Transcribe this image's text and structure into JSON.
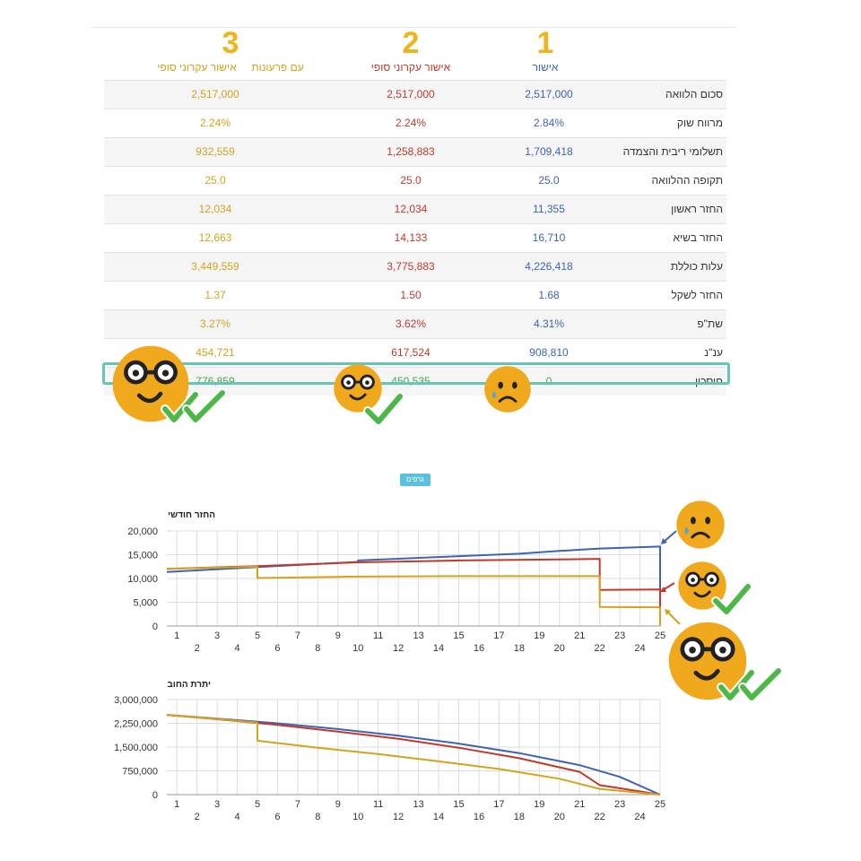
{
  "table": {
    "columns": [
      {
        "num": "1",
        "label": "אישור"
      },
      {
        "num": "2",
        "label": "אישור עקרוני סופי"
      },
      {
        "num": "3",
        "label": "אישור עקרוני סופי",
        "label2": "עם פרעונות"
      }
    ],
    "rows": [
      {
        "label": "סכום הלוואה",
        "v1": "2,517,000",
        "v2": "2,517,000",
        "v3": "2,517,000"
      },
      {
        "label": "מרווח שוק",
        "v1": "2.84%",
        "v2": "2.24%",
        "v3": "2.24%"
      },
      {
        "label": "תשלומי ריבית והצמדה",
        "v1": "1,709,418",
        "v2": "1,258,883",
        "v3": "932,559"
      },
      {
        "label": "תקופה ההלוואה",
        "v1": "25.0",
        "v2": "25.0",
        "v3": "25.0"
      },
      {
        "label": "החזר ראשון",
        "v1": "11,355",
        "v2": "12,034",
        "v3": "12,034"
      },
      {
        "label": "החזר בשיא",
        "v1": "16,710",
        "v2": "14,133",
        "v3": "12,663"
      },
      {
        "label": "עלות כוללת",
        "v1": "4,226,418",
        "v2": "3,775,883",
        "v3": "3,449,559"
      },
      {
        "label": "החזר לשקל",
        "v1": "1.68",
        "v2": "1.50",
        "v3": "1.37"
      },
      {
        "label": "שת\"פ",
        "v1": "4.31%",
        "v2": "3.62%",
        "v3": "3.27%"
      },
      {
        "label": "ענ\"נ",
        "v1": "908,810",
        "v2": "617,524",
        "v3": "454,721"
      },
      {
        "label": "חיסכון",
        "v1": "0",
        "v2": "450,535",
        "v3": "776,859"
      }
    ]
  },
  "badge": "גרפים",
  "colors": {
    "series1": "#3f63b4",
    "series2": "#c0392b",
    "series3": "#d5a21c",
    "savings": "#48a748",
    "highlight": "#66c6b5",
    "emoji": "#f0a81c"
  },
  "icons": [
    "sad-emoji-icon",
    "smile-emoji-icon",
    "glasses-emoji-icon",
    "checkmark-icon",
    "double-checkmark-icon",
    "arrow-icon"
  ],
  "chart_data": [
    {
      "type": "line",
      "title": "החזר חודשי",
      "x": [
        1,
        2,
        3,
        4,
        5,
        6,
        7,
        8,
        9,
        10,
        11,
        12,
        13,
        14,
        15,
        16,
        17,
        18,
        19,
        20,
        21,
        22,
        23,
        24,
        25
      ],
      "xlim": [
        0.5,
        25
      ],
      "ylim": [
        0,
        20000
      ],
      "yticks": [
        "0",
        "5,000",
        "10,000",
        "15,000",
        "20,000"
      ],
      "ytick_values": [
        0,
        5000,
        10000,
        15000,
        20000
      ],
      "grid": true,
      "series": [
        {
          "color": "#3f63b4",
          "points": [
            [
              0.5,
              11355
            ],
            [
              5,
              12400
            ],
            [
              10,
              13500
            ],
            [
              10,
              13800
            ],
            [
              15,
              14700
            ],
            [
              18,
              15200
            ],
            [
              20,
              15800
            ],
            [
              22,
              16300
            ],
            [
              25,
              16710
            ],
            [
              25,
              0
            ]
          ]
        },
        {
          "color": "#c0392b",
          "points": [
            [
              0.5,
              12034
            ],
            [
              5,
              12600
            ],
            [
              10,
              13400
            ],
            [
              15,
              13800
            ],
            [
              20,
              14000
            ],
            [
              22,
              14133
            ],
            [
              22,
              7600
            ],
            [
              25,
              7700
            ],
            [
              25,
              0
            ]
          ]
        },
        {
          "color": "#d5a21c",
          "points": [
            [
              0.5,
              12034
            ],
            [
              5,
              12500
            ],
            [
              5,
              10100
            ],
            [
              10,
              10400
            ],
            [
              15,
              10500
            ],
            [
              22,
              10500
            ],
            [
              22,
              4000
            ],
            [
              25,
              3950
            ],
            [
              25,
              0
            ]
          ]
        }
      ]
    },
    {
      "type": "line",
      "title": "יתרת החוב",
      "x": [
        1,
        2,
        3,
        4,
        5,
        6,
        7,
        8,
        9,
        10,
        11,
        12,
        13,
        14,
        15,
        16,
        17,
        18,
        19,
        20,
        21,
        22,
        23,
        24,
        25
      ],
      "xlim": [
        0.5,
        25
      ],
      "ylim": [
        0,
        3000000
      ],
      "yticks": [
        "0",
        "750,000",
        "1,500,000",
        "2,250,000",
        "3,000,000"
      ],
      "ytick_values": [
        0,
        750000,
        1500000,
        2250000,
        3000000
      ],
      "grid": true,
      "series": [
        {
          "color": "#3f63b4",
          "points": [
            [
              0.5,
              2517000
            ],
            [
              3,
              2400000
            ],
            [
              6,
              2250000
            ],
            [
              9,
              2070000
            ],
            [
              12,
              1860000
            ],
            [
              15,
              1610000
            ],
            [
              18,
              1310000
            ],
            [
              21,
              930000
            ],
            [
              23,
              560000
            ],
            [
              25,
              0
            ]
          ]
        },
        {
          "color": "#c0392b",
          "points": [
            [
              0.5,
              2517000
            ],
            [
              3,
              2380000
            ],
            [
              6,
              2200000
            ],
            [
              9,
              1990000
            ],
            [
              12,
              1760000
            ],
            [
              15,
              1480000
            ],
            [
              18,
              1150000
            ],
            [
              21,
              720000
            ],
            [
              22,
              300000
            ],
            [
              25,
              0
            ]
          ]
        },
        {
          "color": "#d5a21c",
          "points": [
            [
              0.5,
              2517000
            ],
            [
              3,
              2390000
            ],
            [
              5,
              2270000
            ],
            [
              5,
              1700000
            ],
            [
              8,
              1480000
            ],
            [
              11,
              1280000
            ],
            [
              14,
              1050000
            ],
            [
              17,
              810000
            ],
            [
              20,
              500000
            ],
            [
              22,
              180000
            ],
            [
              25,
              0
            ]
          ]
        }
      ]
    }
  ]
}
